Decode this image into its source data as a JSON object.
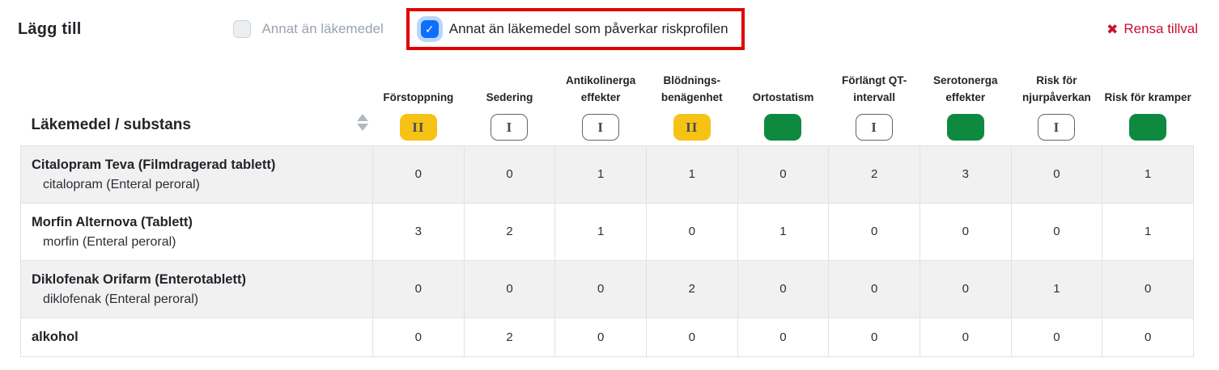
{
  "toolbar": {
    "title": "Lägg till",
    "checkboxes": [
      {
        "label": "Annat än läkemedel",
        "checked": false,
        "highlighted": false
      },
      {
        "label": "Annat än läkemedel som påverkar riskprofilen",
        "checked": true,
        "highlighted": true
      }
    ],
    "clear_label": "Rensa tillval"
  },
  "icons": {
    "check": "✓",
    "clear_x": "✖"
  },
  "table": {
    "first_col_header": "Läkemedel / substans",
    "columns": [
      {
        "label": "Förstoppning",
        "badge": "II",
        "badge_type": "yellow"
      },
      {
        "label": "Sedering",
        "badge": "I",
        "badge_type": "outline"
      },
      {
        "label": "Antikolinerga effekter",
        "badge": "I",
        "badge_type": "outline"
      },
      {
        "label": "Blödnings-benägenhet",
        "badge": "II",
        "badge_type": "yellow"
      },
      {
        "label": "Ortostatism",
        "badge": "",
        "badge_type": "green"
      },
      {
        "label": "Förlängt QT-intervall",
        "badge": "I",
        "badge_type": "outline"
      },
      {
        "label": "Serotonerga effekter",
        "badge": "",
        "badge_type": "green"
      },
      {
        "label": "Risk för njurpåverkan",
        "badge": "I",
        "badge_type": "outline"
      },
      {
        "label": "Risk för kramper",
        "badge": "",
        "badge_type": "green"
      }
    ],
    "rows": [
      {
        "name": "Citalopram Teva (Filmdragerad tablett)",
        "sub": "citalopram (Enteral peroral)",
        "values": [
          0,
          0,
          1,
          1,
          0,
          2,
          3,
          0,
          1
        ]
      },
      {
        "name": "Morfin Alternova (Tablett)",
        "sub": "morfin (Enteral peroral)",
        "values": [
          3,
          2,
          1,
          0,
          1,
          0,
          0,
          0,
          1
        ]
      },
      {
        "name": "Diklofenak Orifarm (Enterotablett)",
        "sub": "diklofenak (Enteral peroral)",
        "values": [
          0,
          0,
          0,
          2,
          0,
          0,
          0,
          1,
          0
        ]
      },
      {
        "name": "alkohol",
        "sub": "",
        "values": [
          0,
          2,
          0,
          0,
          0,
          0,
          0,
          0,
          0
        ]
      }
    ]
  },
  "colors": {
    "yellow": "#f7c216",
    "green": "#0e8a40",
    "hl-red": "#e00000",
    "link-red": "#c8102e",
    "cb-blue": "#0d6efd"
  }
}
